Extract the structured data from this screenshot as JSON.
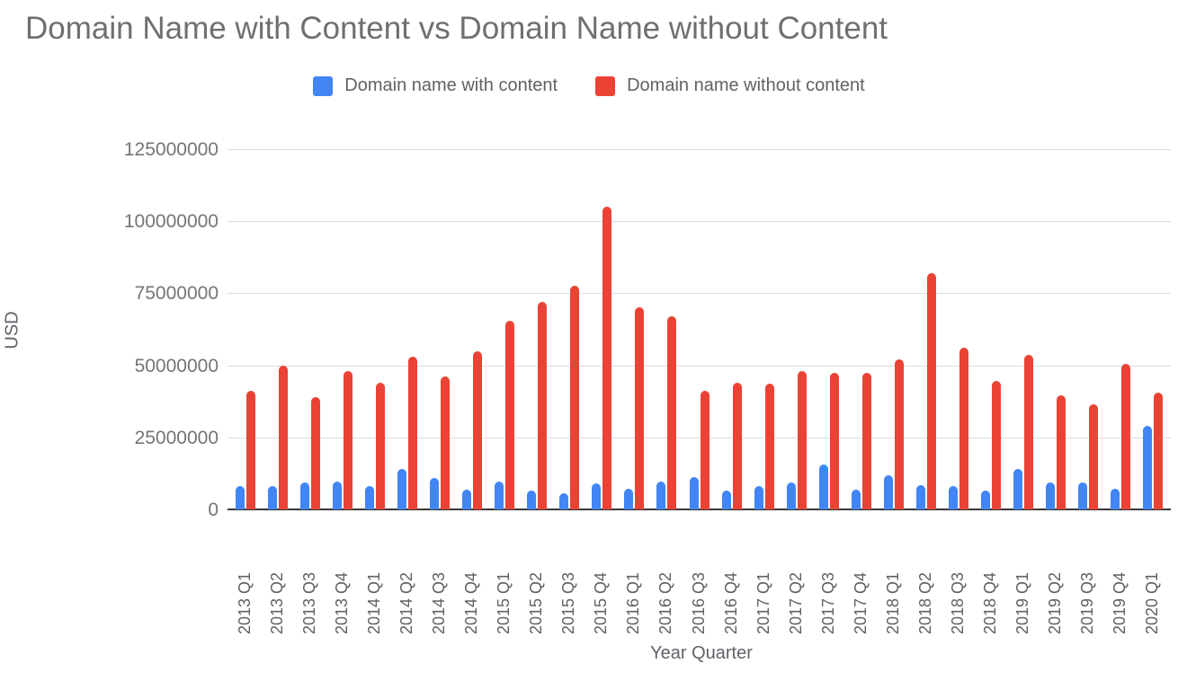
{
  "chart_data": {
    "type": "bar",
    "title": "Domain Name with Content vs Domain Name without Content",
    "xlabel": "Year Quarter",
    "ylabel": "USD",
    "ylim": [
      0,
      125000000
    ],
    "yticks": [
      0,
      25000000,
      50000000,
      75000000,
      100000000,
      125000000
    ],
    "grid": true,
    "legend_position": "top-center",
    "background_color": "#ffffff",
    "categories": [
      "2013 Q1",
      "2013 Q2",
      "2013 Q3",
      "2013 Q4",
      "2014 Q1",
      "2014 Q2",
      "2014 Q3",
      "2014 Q4",
      "2015 Q1",
      "2015 Q2",
      "2015 Q3",
      "2015 Q4",
      "2016 Q1",
      "2016 Q2",
      "2016 Q3",
      "2016 Q4",
      "2017 Q1",
      "2017 Q2",
      "2017 Q3",
      "2017 Q4",
      "2018 Q1",
      "2018 Q2",
      "2018 Q3",
      "2018 Q4",
      "2019 Q1",
      "2019 Q2",
      "2019 Q3",
      "2019 Q4",
      "2020 Q1"
    ],
    "series": [
      {
        "name": "Domain name with content",
        "color": "#4285F4",
        "values": [
          8000000,
          8000000,
          9500000,
          9700000,
          8000000,
          14000000,
          11000000,
          7000000,
          9700000,
          6500000,
          5500000,
          9000000,
          7200000,
          9800000,
          11200000,
          6500000,
          8000000,
          9300000,
          15500000,
          7000000,
          11700000,
          8400000,
          8000000,
          6700000,
          14000000,
          9400000,
          9300000,
          7200000,
          29000000
        ]
      },
      {
        "name": "Domain name without content",
        "color": "#EA4335",
        "values": [
          41000000,
          50000000,
          39000000,
          48000000,
          44000000,
          53000000,
          46000000,
          55000000,
          65500000,
          72000000,
          77500000,
          105000000,
          70000000,
          67000000,
          41000000,
          44000000,
          43500000,
          48000000,
          47500000,
          47500000,
          52000000,
          82000000,
          56000000,
          44500000,
          53500000,
          39500000,
          36500000,
          50500000,
          40500000
        ]
      }
    ]
  }
}
